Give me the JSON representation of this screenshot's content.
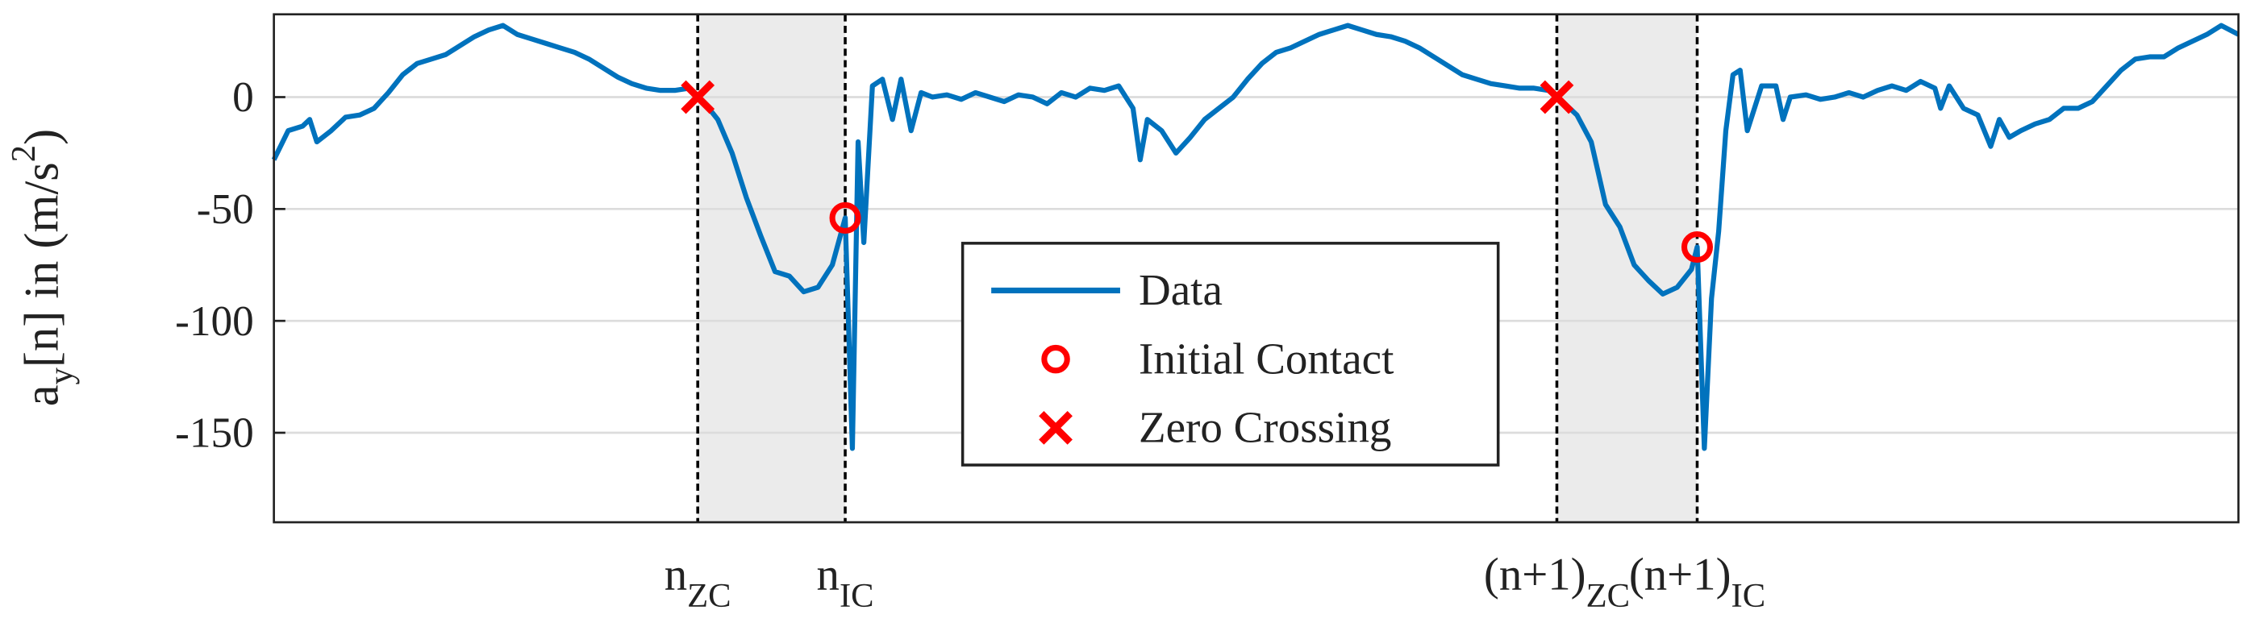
{
  "chart_data": {
    "type": "line",
    "x": [
      0,
      10,
      20,
      25,
      30,
      40,
      50,
      60,
      70,
      80,
      90,
      100,
      110,
      120,
      130,
      140,
      150,
      160,
      170,
      180,
      190,
      200,
      210,
      220,
      230,
      240,
      250,
      260,
      270,
      280,
      290,
      296,
      300,
      310,
      320,
      330,
      340,
      350,
      360,
      370,
      380,
      390,
      399,
      404,
      408,
      412,
      418,
      425,
      432,
      438,
      445,
      452,
      460,
      470,
      480,
      490,
      500,
      510,
      520,
      530,
      540,
      550,
      560,
      570,
      580,
      590,
      600,
      605,
      610,
      620,
      630,
      640,
      650,
      660,
      670,
      680,
      690,
      700,
      710,
      720,
      730,
      740,
      750,
      760,
      770,
      780,
      790,
      800,
      810,
      820,
      830,
      840,
      850,
      860,
      870,
      880,
      890,
      896,
      900,
      910,
      920,
      930,
      940,
      950,
      960,
      970,
      980,
      990,
      994,
      999,
      1004,
      1009,
      1014,
      1019,
      1024,
      1029,
      1039,
      1049,
      1054,
      1059,
      1070,
      1080,
      1090,
      1100,
      1110,
      1120,
      1130,
      1140,
      1150,
      1160,
      1164,
      1170,
      1180,
      1190,
      1199,
      1205,
      1212,
      1220,
      1230,
      1240,
      1250,
      1260,
      1270,
      1280,
      1290,
      1300,
      1310,
      1320,
      1330,
      1340,
      1350,
      1360,
      1372
    ],
    "series": [
      {
        "name": "Data",
        "color": "#0072BD",
        "values": [
          -28,
          -15,
          -13,
          -10,
          -20,
          -15,
          -9,
          -8,
          -5,
          2,
          10,
          15,
          17,
          19,
          23,
          27,
          30,
          32,
          28,
          26,
          24,
          22,
          20,
          17,
          13,
          9,
          6,
          4,
          3,
          3,
          4,
          0,
          -2,
          -10,
          -25,
          -45,
          -62,
          -78,
          -80,
          -87,
          -85,
          -75,
          -54,
          -157,
          -20,
          -65,
          5,
          8,
          -10,
          8,
          -15,
          2,
          0,
          1,
          -1,
          2,
          0,
          -2,
          1,
          0,
          -3,
          2,
          0,
          4,
          3,
          5,
          -5,
          -28,
          -10,
          -15,
          -25,
          -18,
          -10,
          -5,
          0,
          8,
          15,
          20,
          22,
          25,
          28,
          30,
          32,
          30,
          28,
          27,
          25,
          22,
          18,
          14,
          10,
          8,
          6,
          5,
          4,
          4,
          3,
          0,
          -2,
          -8,
          -20,
          -48,
          -58,
          -75,
          -82,
          -88,
          -85,
          -77,
          -67,
          -157,
          -90,
          -60,
          -15,
          10,
          12,
          -15,
          5,
          5,
          -10,
          0,
          1,
          -1,
          0,
          2,
          0,
          3,
          5,
          3,
          7,
          4,
          -5,
          5,
          -5,
          -8,
          -22,
          -10,
          -18,
          -15,
          -12,
          -10,
          -5,
          -5,
          -2,
          5,
          12,
          17,
          18,
          18,
          22,
          25,
          28,
          32,
          28
        ]
      },
      {
        "name": "Initial Contact",
        "color": "#FF0000",
        "marker": "circle",
        "x": [
          399,
          994
        ],
        "values": [
          -54,
          -67
        ]
      },
      {
        "name": "Zero Crossing",
        "color": "#FF0000",
        "marker": "x",
        "x": [
          296,
          896
        ],
        "values": [
          0,
          0
        ]
      }
    ],
    "xlim": [
      0,
      1372
    ],
    "ylim": [
      -190,
      37
    ],
    "yticks": [
      0,
      -50,
      -100,
      -150
    ],
    "xticks": [
      {
        "value": 296,
        "label": "n",
        "sub": "ZC"
      },
      {
        "value": 399,
        "label": "n",
        "sub": "IC"
      },
      {
        "value": 896,
        "label": "(n+1)",
        "sub": "ZC"
      },
      {
        "value": 994,
        "label": "(n+1)",
        "sub": "IC"
      }
    ],
    "ylabel": [
      "a",
      "y",
      "[n]  in (m/s",
      "2",
      ")"
    ],
    "shaded": [
      [
        296,
        399
      ],
      [
        896,
        994
      ]
    ],
    "grid": true,
    "legend": "center"
  }
}
